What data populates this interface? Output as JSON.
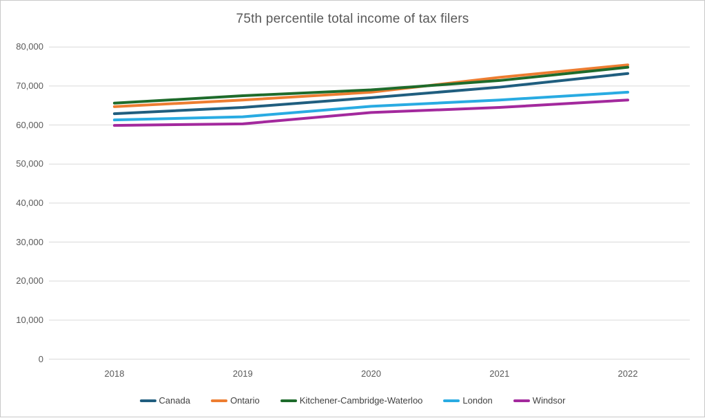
{
  "chart_data": {
    "type": "line",
    "title": "75th percentile total income of tax filers",
    "categories": [
      "2018",
      "2019",
      "2020",
      "2021",
      "2022"
    ],
    "series": [
      {
        "name": "Canada",
        "color": "#205E7F",
        "values": [
          62900,
          64500,
          67000,
          69700,
          73200
        ]
      },
      {
        "name": "Ontario",
        "color": "#ED7D31",
        "values": [
          64700,
          66400,
          68400,
          72200,
          75400
        ]
      },
      {
        "name": "Kitchener-Cambridge-Waterloo",
        "color": "#1E6B2B",
        "values": [
          65600,
          67500,
          69000,
          71400,
          74800
        ]
      },
      {
        "name": "London",
        "color": "#29ABE2",
        "values": [
          61300,
          62100,
          64800,
          66400,
          68400
        ]
      },
      {
        "name": "Windsor",
        "color": "#A3299D",
        "values": [
          59900,
          60300,
          63200,
          64500,
          66400
        ]
      }
    ],
    "y_axis": {
      "min": 0,
      "max": 80000,
      "tick_step": 10000,
      "tick_labels": [
        "0",
        "10,000",
        "20,000",
        "30,000",
        "40,000",
        "50,000",
        "60,000",
        "70,000",
        "80,000"
      ]
    },
    "x_axis": {
      "tick_labels": [
        "2018",
        "2019",
        "2020",
        "2021",
        "2022"
      ]
    },
    "legend_position": "bottom",
    "grid": true
  },
  "colors": {
    "background": "#FFFFFF",
    "border": "#C8C8C8",
    "gridline": "#D9D9D9",
    "title_text": "#595959",
    "axis_text": "#595959",
    "legend_text": "#404040"
  }
}
